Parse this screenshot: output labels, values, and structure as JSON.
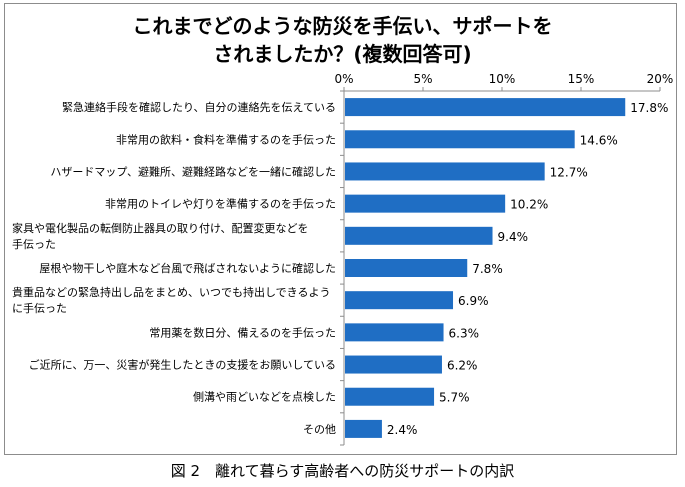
{
  "chart_data": {
    "type": "bar",
    "orientation": "horizontal",
    "title_lines": [
      "これまでどのような防災を手伝い、サポートを",
      "されましたか？(複数回答可)"
    ],
    "caption": "図 2　離れて暮らす高齢者への防災サポートの内訳",
    "x_ticks": [
      "0%",
      "5%",
      "10%",
      "15%",
      "20%"
    ],
    "xlim": [
      0,
      20
    ],
    "tick_step": 5,
    "grid": false,
    "legend": "none",
    "bar_color": "#1f6ec4",
    "categories": [
      [
        "緊急連絡手段を確認したり、自分の連絡先を伝えている"
      ],
      [
        "非常用の飲料・食料を準備するのを手伝った"
      ],
      [
        "ハザードマップ、避難所、避難経路などを一緒に確認した"
      ],
      [
        "非常用のトイレや灯りを準備するのを手伝った"
      ],
      [
        "家具や電化製品の転倒防止器具の取り付け、配置変更などを",
        "手伝った"
      ],
      [
        "屋根や物干しや庭木など台風で飛ばされないように確認した"
      ],
      [
        "貴重品などの緊急持出し品をまとめ、いつでも持出しできるよう",
        "に手伝った"
      ],
      [
        "常用薬を数日分、備えるのを手伝った"
      ],
      [
        "ご近所に、万一、災害が発生したときの支援をお願いしている"
      ],
      [
        "側溝や雨どいなどを点検した"
      ],
      [
        "その他"
      ]
    ],
    "values": [
      17.8,
      14.6,
      12.7,
      10.2,
      9.4,
      7.8,
      6.9,
      6.3,
      6.2,
      5.7,
      2.4
    ],
    "value_labels": [
      "17.8%",
      "14.6%",
      "12.7%",
      "10.2%",
      "9.4%",
      "7.8%",
      "6.9%",
      "6.3%",
      "6.2%",
      "5.7%",
      "2.4%"
    ]
  }
}
